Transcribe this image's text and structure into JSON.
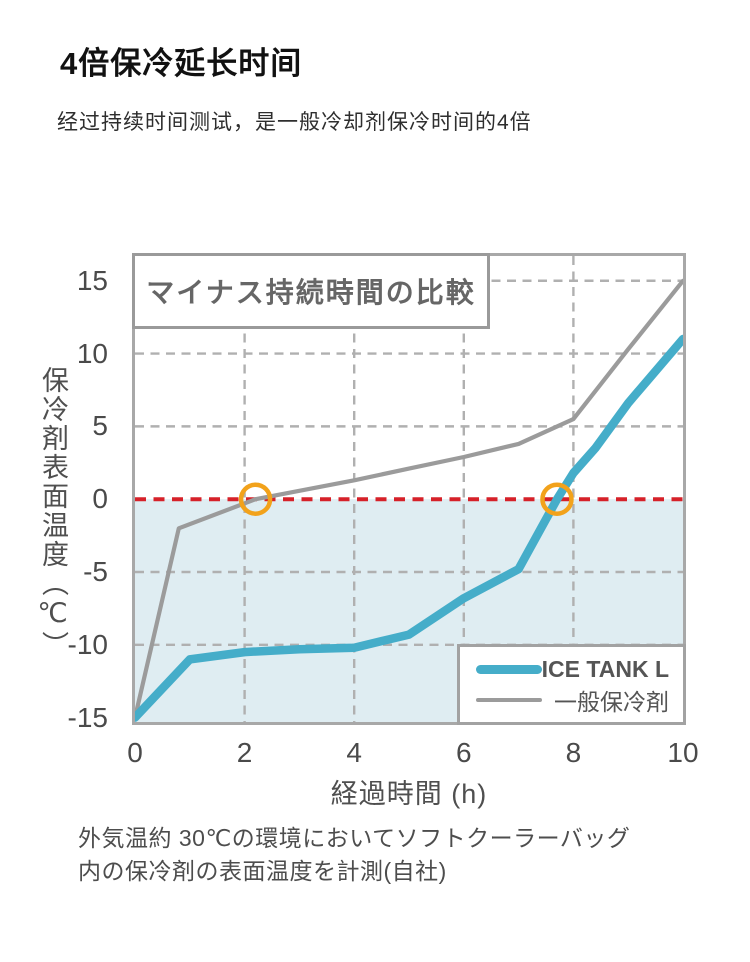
{
  "page": {
    "title": "4倍保冷延长时间",
    "subtitle": "经过持续时间测试，是一般冷却剂保冷时间的4倍"
  },
  "chart_data": {
    "type": "line",
    "title": "マイナス持続時間の比較",
    "xlabel": "経過時間 (h)",
    "ylabel": "保冷剤表面温度（℃）",
    "xlim": [
      0,
      10
    ],
    "ylim": [
      -15.3,
      16.7
    ],
    "xticks": [
      0,
      2,
      4,
      6,
      8,
      10
    ],
    "yticks": [
      15,
      10,
      5,
      0,
      -5,
      -10,
      -15
    ],
    "grid": true,
    "grid_color": "#b0b0b0",
    "plot_border_color": "#a8a8a8",
    "below_zero_fill": "#dfedf2",
    "zero_line": {
      "value": 0,
      "style": "dashed",
      "color": "#d62129"
    },
    "series": [
      {
        "name": "ICE TANK L",
        "color": "#45adc9",
        "width": 8.5,
        "points": [
          [
            0,
            -15
          ],
          [
            1,
            -11
          ],
          [
            2,
            -10.5
          ],
          [
            3,
            -10.3
          ],
          [
            4,
            -10.2
          ],
          [
            5,
            -9.3
          ],
          [
            6,
            -6.8
          ],
          [
            7,
            -4.8
          ],
          [
            7.7,
            0
          ],
          [
            8,
            1.8
          ],
          [
            8.4,
            3.5
          ],
          [
            9,
            6.6
          ],
          [
            10,
            11
          ]
        ]
      },
      {
        "name": "一般保冷剤",
        "color": "#9b9b9b",
        "width": 4.2,
        "points": [
          [
            0,
            -15
          ],
          [
            0.8,
            -2
          ],
          [
            2.2,
            0
          ],
          [
            4,
            1.3
          ],
          [
            5,
            2.1
          ],
          [
            6,
            2.9
          ],
          [
            7,
            3.8
          ],
          [
            8,
            5.5
          ],
          [
            9,
            10.3
          ],
          [
            10,
            15
          ]
        ]
      }
    ],
    "annotations": [
      {
        "type": "circle",
        "x": 2.2,
        "y": 0,
        "color": "#f2a21b",
        "label": "zero-crossing-regular-ice-pack"
      },
      {
        "type": "circle",
        "x": 7.7,
        "y": 0,
        "color": "#f2a21b",
        "label": "zero-crossing-ice-tank-l"
      }
    ],
    "legend": {
      "position": "bottom-right",
      "entries": [
        "ICE TANK L",
        "一般保冷剤"
      ]
    },
    "caption_lines": [
      "外気温約 30℃の環境においてソフトクーラーバッグ",
      "内の保冷剤の表面温度を計測(自社)"
    ]
  }
}
